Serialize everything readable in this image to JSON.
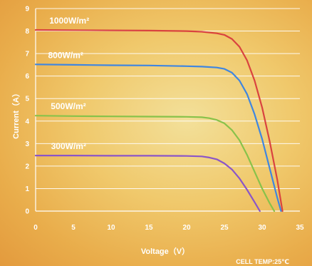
{
  "chart_data": {
    "type": "line",
    "title": "",
    "xlabel": "Voltage（V）",
    "ylabel": "Current（A）",
    "xlim": [
      0,
      35
    ],
    "ylim": [
      0,
      9
    ],
    "x_ticks": [
      "0",
      "5",
      "10",
      "15",
      "20",
      "25",
      "30",
      "35"
    ],
    "y_ticks": [
      "0",
      "1",
      "2",
      "3",
      "4",
      "5",
      "6",
      "7",
      "8",
      "9"
    ],
    "grid": "horizontal",
    "note": "CELL TEMP:25℃",
    "series": [
      {
        "name": "1000W/m²",
        "color": "#d9433f",
        "x": [
          0,
          5,
          10,
          15,
          20,
          22,
          24,
          25,
          26,
          27,
          28,
          29,
          30,
          31,
          32,
          32.7
        ],
        "y": [
          8.05,
          8.04,
          8.03,
          8.02,
          8.0,
          7.97,
          7.9,
          7.83,
          7.65,
          7.3,
          6.7,
          5.8,
          4.6,
          3.1,
          1.4,
          0
        ]
      },
      {
        "name": "800W/m²",
        "color": "#3f86e0",
        "x": [
          0,
          5,
          10,
          15,
          20,
          22,
          24,
          25,
          26,
          27,
          28,
          29,
          30,
          31,
          32,
          32.5
        ],
        "y": [
          6.52,
          6.5,
          6.48,
          6.47,
          6.44,
          6.42,
          6.38,
          6.32,
          6.15,
          5.8,
          5.2,
          4.3,
          3.2,
          1.9,
          0.6,
          0
        ]
      },
      {
        "name": "500W/m²",
        "color": "#88c24a",
        "x": [
          0,
          5,
          10,
          15,
          20,
          22,
          23,
          24,
          25,
          26,
          27,
          28,
          29,
          30,
          31,
          31.6
        ],
        "y": [
          4.24,
          4.22,
          4.21,
          4.2,
          4.19,
          4.17,
          4.13,
          4.05,
          3.9,
          3.6,
          3.15,
          2.5,
          1.75,
          1.0,
          0.35,
          0
        ]
      },
      {
        "name": "300W/m²",
        "color": "#8a55c8",
        "x": [
          0,
          5,
          10,
          15,
          20,
          22,
          23,
          24,
          25,
          26,
          27,
          28,
          29,
          29.7
        ],
        "y": [
          2.47,
          2.47,
          2.46,
          2.46,
          2.45,
          2.43,
          2.38,
          2.3,
          2.12,
          1.85,
          1.45,
          0.95,
          0.4,
          0
        ]
      }
    ]
  }
}
